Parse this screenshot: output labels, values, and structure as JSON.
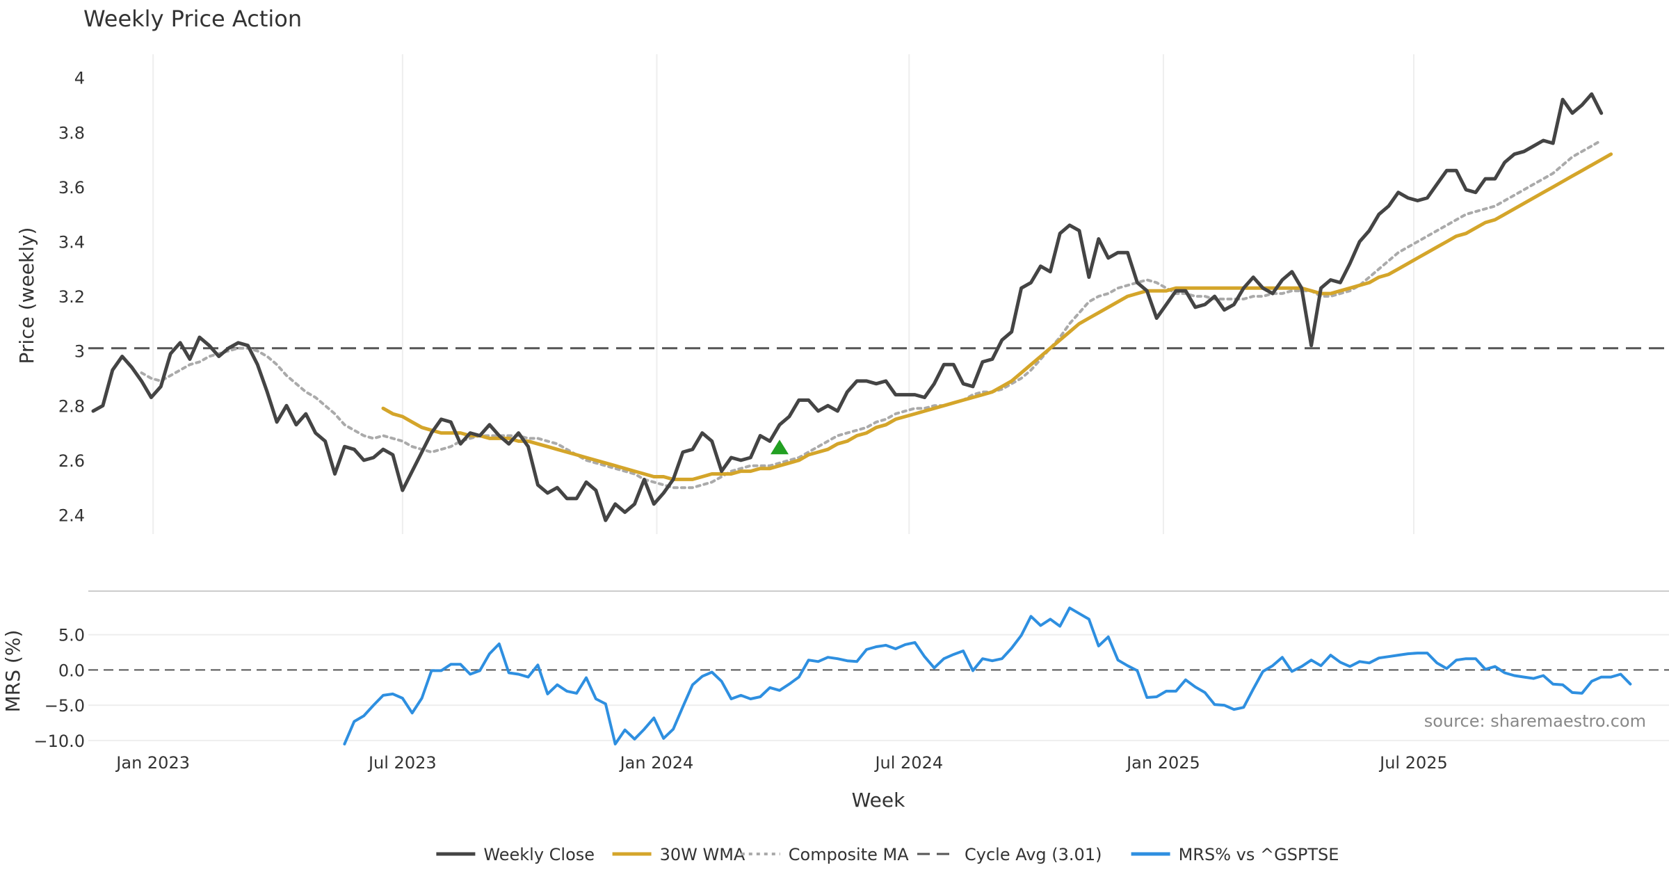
{
  "chart_data": {
    "type": "line",
    "title": "Weekly Price Action",
    "source_note": "source: sharemaestro.com",
    "price_panel": {
      "ylabel": "Price (weekly)",
      "ylim": [
        2.33,
        4.05
      ],
      "yticks": [
        2.4,
        2.6,
        2.8,
        3,
        3.2,
        3.4,
        3.6,
        3.8,
        4
      ],
      "ytick_labels": [
        "2.4",
        "2.6",
        "2.8",
        "3",
        "3.2",
        "3.4",
        "3.6",
        "3.8",
        "4"
      ],
      "cycle_avg": 3.01,
      "start": "2022-11-18",
      "series": [
        {
          "name": "Weekly Close",
          "color": "#444444",
          "style": "solid",
          "start_index": 0,
          "values": [
            2.78,
            2.8,
            2.93,
            2.98,
            2.94,
            2.89,
            2.83,
            2.87,
            2.99,
            3.03,
            2.97,
            3.05,
            3.02,
            2.98,
            3.01,
            3.03,
            3.02,
            2.95,
            2.85,
            2.74,
            2.8,
            2.73,
            2.77,
            2.7,
            2.67,
            2.55,
            2.65,
            2.64,
            2.6,
            2.61,
            2.64,
            2.62,
            2.49,
            2.56,
            2.63,
            2.7,
            2.75,
            2.74,
            2.66,
            2.7,
            2.69,
            2.73,
            2.69,
            2.66,
            2.7,
            2.65,
            2.51,
            2.48,
            2.5,
            2.46,
            2.46,
            2.52,
            2.49,
            2.38,
            2.44,
            2.41,
            2.44,
            2.53,
            2.44,
            2.48,
            2.53,
            2.63,
            2.64,
            2.7,
            2.67,
            2.56,
            2.61,
            2.6,
            2.61,
            2.69,
            2.67,
            2.73,
            2.76,
            2.82,
            2.82,
            2.78,
            2.8,
            2.78,
            2.85,
            2.89,
            2.89,
            2.88,
            2.89,
            2.84,
            2.84,
            2.84,
            2.83,
            2.88,
            2.95,
            2.95,
            2.88,
            2.87,
            2.96,
            2.97,
            3.04,
            3.07,
            3.23,
            3.25,
            3.31,
            3.29,
            3.43,
            3.46,
            3.44,
            3.27,
            3.41,
            3.34,
            3.36,
            3.36,
            3.25,
            3.22,
            3.12,
            3.17,
            3.22,
            3.22,
            3.16,
            3.17,
            3.2,
            3.15,
            3.17,
            3.23,
            3.27,
            3.23,
            3.21,
            3.26,
            3.29,
            3.23,
            3.02,
            3.23,
            3.26,
            3.25,
            3.32,
            3.4,
            3.44,
            3.5,
            3.53,
            3.58,
            3.56,
            3.55,
            3.56,
            3.61,
            3.66,
            3.66,
            3.59,
            3.58,
            3.63,
            3.63,
            3.69,
            3.72,
            3.73,
            3.75,
            3.77,
            3.76,
            3.92,
            3.87,
            3.9,
            3.94,
            3.87
          ]
        },
        {
          "name": "30W WMA",
          "color": "#d4a52a",
          "style": "solid",
          "start_index": 30,
          "values": [
            2.79,
            2.77,
            2.76,
            2.74,
            2.72,
            2.71,
            2.7,
            2.7,
            2.7,
            2.69,
            2.69,
            2.68,
            2.68,
            2.68,
            2.67,
            2.67,
            2.66,
            2.65,
            2.64,
            2.63,
            2.62,
            2.61,
            2.6,
            2.59,
            2.58,
            2.57,
            2.56,
            2.55,
            2.54,
            2.54,
            2.53,
            2.53,
            2.53,
            2.54,
            2.55,
            2.55,
            2.55,
            2.56,
            2.56,
            2.57,
            2.57,
            2.58,
            2.59,
            2.6,
            2.62,
            2.63,
            2.64,
            2.66,
            2.67,
            2.69,
            2.7,
            2.72,
            2.73,
            2.75,
            2.76,
            2.77,
            2.78,
            2.79,
            2.8,
            2.81,
            2.82,
            2.83,
            2.84,
            2.85,
            2.87,
            2.89,
            2.92,
            2.95,
            2.98,
            3.01,
            3.04,
            3.07,
            3.1,
            3.12,
            3.14,
            3.16,
            3.18,
            3.2,
            3.21,
            3.22,
            3.22,
            3.22,
            3.23,
            3.23,
            3.23,
            3.23,
            3.23,
            3.23,
            3.23,
            3.23,
            3.23,
            3.23,
            3.23,
            3.23,
            3.23,
            3.23,
            3.22,
            3.21,
            3.21,
            3.22,
            3.23,
            3.24,
            3.25,
            3.27,
            3.28,
            3.3,
            3.32,
            3.34,
            3.36,
            3.38,
            3.4,
            3.42,
            3.43,
            3.45,
            3.47,
            3.48,
            3.5,
            3.52,
            3.54,
            3.56,
            3.58,
            3.6,
            3.62,
            3.64,
            3.66,
            3.68,
            3.7,
            3.72
          ]
        },
        {
          "name": "Composite MA",
          "color": "#aaaaaa",
          "style": "dotted",
          "start_index": 5,
          "values": [
            2.92,
            2.9,
            2.89,
            2.91,
            2.93,
            2.95,
            2.96,
            2.98,
            2.99,
            3.0,
            3.01,
            3.01,
            3.0,
            2.98,
            2.95,
            2.91,
            2.88,
            2.85,
            2.83,
            2.8,
            2.77,
            2.73,
            2.71,
            2.69,
            2.68,
            2.69,
            2.68,
            2.67,
            2.65,
            2.64,
            2.63,
            2.64,
            2.65,
            2.67,
            2.68,
            2.69,
            2.69,
            2.69,
            2.69,
            2.69,
            2.68,
            2.68,
            2.67,
            2.66,
            2.64,
            2.62,
            2.6,
            2.59,
            2.58,
            2.57,
            2.56,
            2.55,
            2.53,
            2.52,
            2.51,
            2.5,
            2.5,
            2.5,
            2.51,
            2.52,
            2.54,
            2.56,
            2.57,
            2.58,
            2.58,
            2.58,
            2.59,
            2.6,
            2.61,
            2.63,
            2.65,
            2.67,
            2.69,
            2.7,
            2.71,
            2.72,
            2.74,
            2.75,
            2.77,
            2.78,
            2.79,
            2.79,
            2.8,
            2.8,
            2.81,
            2.82,
            2.84,
            2.85,
            2.85,
            2.86,
            2.88,
            2.9,
            2.93,
            2.97,
            3.01,
            3.05,
            3.1,
            3.14,
            3.18,
            3.2,
            3.21,
            3.23,
            3.24,
            3.25,
            3.26,
            3.25,
            3.23,
            3.21,
            3.21,
            3.2,
            3.2,
            3.19,
            3.19,
            3.19,
            3.19,
            3.2,
            3.2,
            3.21,
            3.21,
            3.22,
            3.22,
            3.22,
            3.2,
            3.2,
            3.21,
            3.22,
            3.24,
            3.27,
            3.3,
            3.33,
            3.36,
            3.38,
            3.4,
            3.42,
            3.44,
            3.46,
            3.48,
            3.5,
            3.51,
            3.52,
            3.53,
            3.55,
            3.57,
            3.59,
            3.61,
            3.63,
            3.65,
            3.68,
            3.71,
            3.73,
            3.75,
            3.77
          ]
        }
      ],
      "signal_marker": {
        "type": "triangle-up",
        "color": "#22a022",
        "index": 71,
        "value": 2.645
      }
    },
    "mrs_panel": {
      "ylabel": "MRS (%)",
      "ylim": [
        -11,
        10
      ],
      "yticks": [
        -10,
        -5,
        0,
        5
      ],
      "ytick_labels": [
        "−10.0",
        "−5.0",
        "0.0",
        "5.0"
      ],
      "series": [
        {
          "name": "MRS% vs ^GSPTSE",
          "color": "#2e8fe0",
          "style": "solid",
          "start_index": 26,
          "values": [
            -10.5,
            -7.3,
            -6.5,
            -5.0,
            -3.6,
            -3.4,
            -4.0,
            -6.1,
            -4.0,
            -0.1,
            -0.1,
            0.8,
            0.8,
            -0.6,
            -0.1,
            2.3,
            3.7,
            -0.4,
            -0.6,
            -1.0,
            0.7,
            -3.4,
            -2.1,
            -3.0,
            -3.3,
            -1.1,
            -4.1,
            -4.8,
            -10.5,
            -8.5,
            -9.8,
            -8.4,
            -6.8,
            -9.7,
            -8.4,
            -5.2,
            -2.1,
            -0.9,
            -0.3,
            -1.6,
            -4.1,
            -3.6,
            -4.1,
            -3.8,
            -2.5,
            -2.9,
            -2.0,
            -1.0,
            1.4,
            1.2,
            1.8,
            1.6,
            1.3,
            1.2,
            2.9,
            3.3,
            3.5,
            3.0,
            3.6,
            3.9,
            1.9,
            0.3,
            1.6,
            2.2,
            2.7,
            -0.1,
            1.6,
            1.3,
            1.6,
            3.1,
            4.9,
            7.6,
            6.3,
            7.2,
            6.2,
            8.8,
            8.0,
            7.2,
            3.4,
            4.7,
            1.4,
            0.6,
            -0.1,
            -3.9,
            -3.8,
            -3.0,
            -3.0,
            -1.4,
            -2.4,
            -3.2,
            -4.9,
            -5.0,
            -5.6,
            -5.3,
            -2.7,
            -0.2,
            0.6,
            1.8,
            -0.2,
            0.5,
            1.4,
            0.6,
            2.1,
            1.1,
            0.5,
            1.2,
            1.0,
            1.7,
            1.9,
            2.1,
            2.3,
            2.4,
            2.4,
            1.0,
            0.2,
            1.4,
            1.6,
            1.6,
            0.1,
            0.5,
            -0.4,
            -0.8,
            -1.0,
            -1.2,
            -0.8,
            -2.0,
            -2.1,
            -3.2,
            -3.3,
            -1.6,
            -1.0,
            -1.0,
            -0.6,
            -2.0
          ]
        }
      ]
    },
    "x_axis": {
      "label": "Week",
      "tick_labels": [
        "Jan 2023",
        "Jul 2023",
        "Jan 2024",
        "Jul 2024",
        "Jan 2025",
        "Jul 2025"
      ],
      "tick_weeks": [
        6.2,
        32.0,
        58.3,
        84.4,
        110.7,
        136.6
      ],
      "week_range": [
        -0.5,
        163
      ]
    },
    "legend": {
      "placement": "bottom-center",
      "items": [
        {
          "label": "Weekly Close",
          "color": "#444444",
          "style": "solid"
        },
        {
          "label": "30W WMA",
          "color": "#d4a52a",
          "style": "solid"
        },
        {
          "label": "Composite MA",
          "color": "#aaaaaa",
          "style": "dotted"
        },
        {
          "label": "Cycle Avg (3.01)",
          "color": "#555555",
          "style": "dashed"
        },
        {
          "label": "MRS% vs ^GSPTSE",
          "color": "#2e8fe0",
          "style": "solid"
        }
      ]
    }
  }
}
